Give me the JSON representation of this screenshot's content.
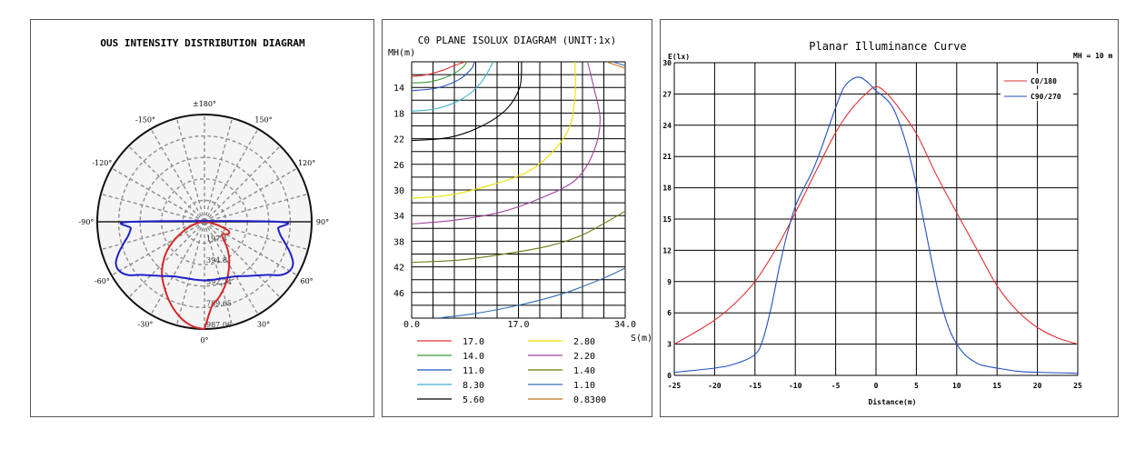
{
  "chart_data": [
    {
      "type": "polar",
      "title": "OUS INTENSITY DISTRIBUTION DIAGRAM",
      "angle_labels": [
        "±180°",
        "150°",
        "120°",
        "90°",
        "60°",
        "30°",
        "0°",
        "-30°",
        "-60°",
        "-90°",
        "-120°",
        "-150°"
      ],
      "radial_labels": [
        "197.4",
        "394.8",
        "592.24",
        "789.65",
        "987.06"
      ],
      "rmax": 987.06,
      "series": [
        {
          "name": "C0/180",
          "color": "#d62828",
          "points": [
            [
              0,
              987
            ],
            [
              -5,
              975
            ],
            [
              -10,
              945
            ],
            [
              -15,
              900
            ],
            [
              -20,
              845
            ],
            [
              -25,
              785
            ],
            [
              -30,
              725
            ],
            [
              -35,
              668
            ],
            [
              -40,
              610
            ],
            [
              -45,
              540
            ],
            [
              -50,
              470
            ],
            [
              -55,
              390
            ],
            [
              -60,
              305
            ],
            [
              -65,
              225
            ],
            [
              -70,
              160
            ],
            [
              -75,
              105
            ],
            [
              -80,
              60
            ],
            [
              -85,
              25
            ],
            [
              -90,
              5
            ],
            [
              90,
              5
            ],
            [
              85,
              25
            ],
            [
              80,
              70
            ],
            [
              75,
              140
            ],
            [
              70,
              230
            ],
            [
              65,
              250
            ],
            [
              60,
              230
            ],
            [
              55,
              200
            ],
            [
              50,
              215
            ],
            [
              45,
              265
            ],
            [
              40,
              330
            ],
            [
              35,
              395
            ],
            [
              30,
              455
            ],
            [
              25,
              520
            ],
            [
              20,
              590
            ],
            [
              15,
              655
            ],
            [
              10,
              720
            ],
            [
              5,
              780
            ],
            [
              0,
              987
            ]
          ]
        },
        {
          "name": "C90/270",
          "color": "#2020c8",
          "points": [
            [
              0,
              540
            ],
            [
              -10,
              540
            ],
            [
              -20,
              550
            ],
            [
              -30,
              580
            ],
            [
              -40,
              650
            ],
            [
              -50,
              760
            ],
            [
              -55,
              855
            ],
            [
              -60,
              905
            ],
            [
              -65,
              900
            ],
            [
              -70,
              840
            ],
            [
              -75,
              770
            ],
            [
              -80,
              710
            ],
            [
              -85,
              680
            ],
            [
              -90,
              670
            ],
            [
              90,
              670
            ],
            [
              85,
              680
            ],
            [
              80,
              710
            ],
            [
              75,
              770
            ],
            [
              70,
              840
            ],
            [
              65,
              900
            ],
            [
              60,
              905
            ],
            [
              55,
              855
            ],
            [
              50,
              760
            ],
            [
              40,
              650
            ],
            [
              30,
              580
            ],
            [
              20,
              550
            ],
            [
              10,
              540
            ],
            [
              0,
              540
            ]
          ]
        }
      ]
    },
    {
      "type": "contour",
      "title": "C0 PLANE ISOLUX DIAGRAM (UNIT:1x)",
      "ylabel": "MH(m)",
      "xlabel": "S(m)",
      "x_ticks": [
        "0.0",
        "17.0",
        "34.0"
      ],
      "xlim": [
        0,
        34
      ],
      "ylim": [
        10,
        50
      ],
      "y_ticks": [
        "14",
        "18",
        "22",
        "26",
        "30",
        "34",
        "38",
        "42",
        "46"
      ],
      "y_tick_values": [
        14,
        18,
        22,
        26,
        30,
        34,
        38,
        42,
        46
      ],
      "legend": [
        {
          "value": "17.0",
          "color": "#e03030"
        },
        {
          "value": "2.80",
          "color": "#e8e000"
        },
        {
          "value": "14.0",
          "color": "#3a9a3a"
        },
        {
          "value": "2.20",
          "color": "#a040a0"
        },
        {
          "value": "11.0",
          "color": "#2050c0"
        },
        {
          "value": "1.40",
          "color": "#6a7a10"
        },
        {
          "value": "8.30",
          "color": "#40b0d0"
        },
        {
          "value": "1.10",
          "color": "#3070b0"
        },
        {
          "value": "5.60",
          "color": "#000000"
        },
        {
          "value": "0.8300",
          "color": "#c07820"
        }
      ],
      "isolines": [
        {
          "color": "#e03030",
          "points": [
            [
              0,
              12.3
            ],
            [
              2.5,
              12.0
            ],
            [
              5,
              11.3
            ],
            [
              7,
              10.5
            ],
            [
              8.5,
              10
            ]
          ]
        },
        {
          "color": "#3a9a3a",
          "points": [
            [
              0,
              13.3
            ],
            [
              3,
              13.1
            ],
            [
              6,
              12.2
            ],
            [
              8,
              11.0
            ],
            [
              8.8,
              10
            ]
          ]
        },
        {
          "color": "#2050c0",
          "points": [
            [
              0,
              14.5
            ],
            [
              4,
              14.1
            ],
            [
              7.5,
              12.8
            ],
            [
              9.5,
              11.1
            ],
            [
              10,
              10
            ]
          ]
        },
        {
          "color": "#40b0d0",
          "points": [
            [
              0,
              17.7
            ],
            [
              4,
              17.3
            ],
            [
              8,
              15.8
            ],
            [
              11,
              13.3
            ],
            [
              13,
              10
            ]
          ]
        },
        {
          "color": "#000000",
          "points": [
            [
              0,
              22.3
            ],
            [
              6,
              21.8
            ],
            [
              11,
              20.1
            ],
            [
              15,
              17.5
            ],
            [
              17.2,
              14
            ],
            [
              17.5,
              10
            ]
          ]
        },
        {
          "color": "#e8e000",
          "points": [
            [
              0,
              31.3
            ],
            [
              6,
              30.8
            ],
            [
              12,
              29.4
            ],
            [
              18,
              27.4
            ],
            [
              22,
              24.5
            ],
            [
              25,
              20.5
            ],
            [
              26,
              15.5
            ],
            [
              26,
              10
            ]
          ]
        },
        {
          "color": "#a040a0",
          "points": [
            [
              0,
              35.3
            ],
            [
              7,
              34.7
            ],
            [
              14,
              33.5
            ],
            [
              20,
              31.5
            ],
            [
              26,
              28.5
            ],
            [
              29,
              24
            ],
            [
              30,
              19
            ],
            [
              29,
              14
            ],
            [
              28,
              10
            ]
          ]
        },
        {
          "color": "#6a7a10",
          "points": [
            [
              0,
              41.3
            ],
            [
              8,
              40.9
            ],
            [
              16,
              39.8
            ],
            [
              22,
              38.7
            ],
            [
              27,
              37.1
            ],
            [
              31,
              35
            ],
            [
              34,
              33.3
            ]
          ]
        },
        {
          "color": "#3070b0",
          "points": [
            [
              4,
              50
            ],
            [
              10,
              49.3
            ],
            [
              17,
              48
            ],
            [
              24,
              46.2
            ],
            [
              30,
              44
            ],
            [
              34,
              42.2
            ]
          ]
        },
        {
          "color": "#c07820",
          "points": [
            [
              31,
              10
            ],
            [
              34,
              11.0
            ]
          ]
        },
        {
          "color": "#3070b0",
          "points": [
            [
              32,
              10
            ],
            [
              34,
              10.6
            ]
          ]
        }
      ]
    },
    {
      "type": "line",
      "title": "Planar Illuminance Curve",
      "annotation": "MH = 10 m",
      "ylabel": "E(lx)",
      "xlabel": "Distance(m)",
      "xlim": [
        -25,
        25
      ],
      "ylim": [
        0,
        30
      ],
      "x_ticks": [
        -25,
        -20,
        -15,
        -10,
        -5,
        0,
        5,
        10,
        15,
        20,
        25
      ],
      "y_ticks": [
        0,
        3,
        6,
        9,
        12,
        15,
        18,
        21,
        24,
        27,
        30
      ],
      "legend_position": "top-right",
      "series": [
        {
          "name": "C0/180",
          "color": "#e03030",
          "x": [
            -25,
            -22.5,
            -20,
            -17.5,
            -15,
            -12.5,
            -10,
            -7.5,
            -5,
            -3,
            -1,
            0,
            1,
            2.5,
            5,
            7.5,
            10,
            12.5,
            15,
            17.5,
            20,
            22.5,
            25
          ],
          "y": [
            3,
            4.1,
            5.3,
            6.9,
            9,
            12,
            15.6,
            19.5,
            23.3,
            25.6,
            27.2,
            27.7,
            27.3,
            26,
            23.2,
            19.2,
            15.6,
            12.1,
            8.6,
            6.2,
            4.6,
            3.6,
            3
          ]
        },
        {
          "name": "C90/270",
          "color": "#2050c0",
          "x": [
            -25,
            -20,
            -17.5,
            -15,
            -14,
            -13,
            -12,
            -11,
            -10,
            -9,
            -8,
            -7,
            -6,
            -5,
            -4,
            -3,
            -2,
            -1,
            0,
            1,
            2,
            3,
            4,
            5,
            6,
            7,
            8,
            9,
            10,
            11,
            12,
            13,
            15,
            17.5,
            20,
            25
          ],
          "y": [
            0.3,
            0.7,
            1.1,
            2.0,
            3.5,
            6.5,
            10.3,
            13.6,
            16.2,
            17.9,
            19.4,
            21.3,
            23.5,
            25.7,
            27.6,
            28.4,
            28.6,
            28.1,
            27.3,
            26.7,
            25.8,
            24.0,
            21.5,
            18.3,
            14.5,
            10.6,
            7.1,
            4.6,
            3.0,
            2.0,
            1.4,
            1.0,
            0.7,
            0.4,
            0.3,
            0.2
          ]
        }
      ]
    }
  ]
}
